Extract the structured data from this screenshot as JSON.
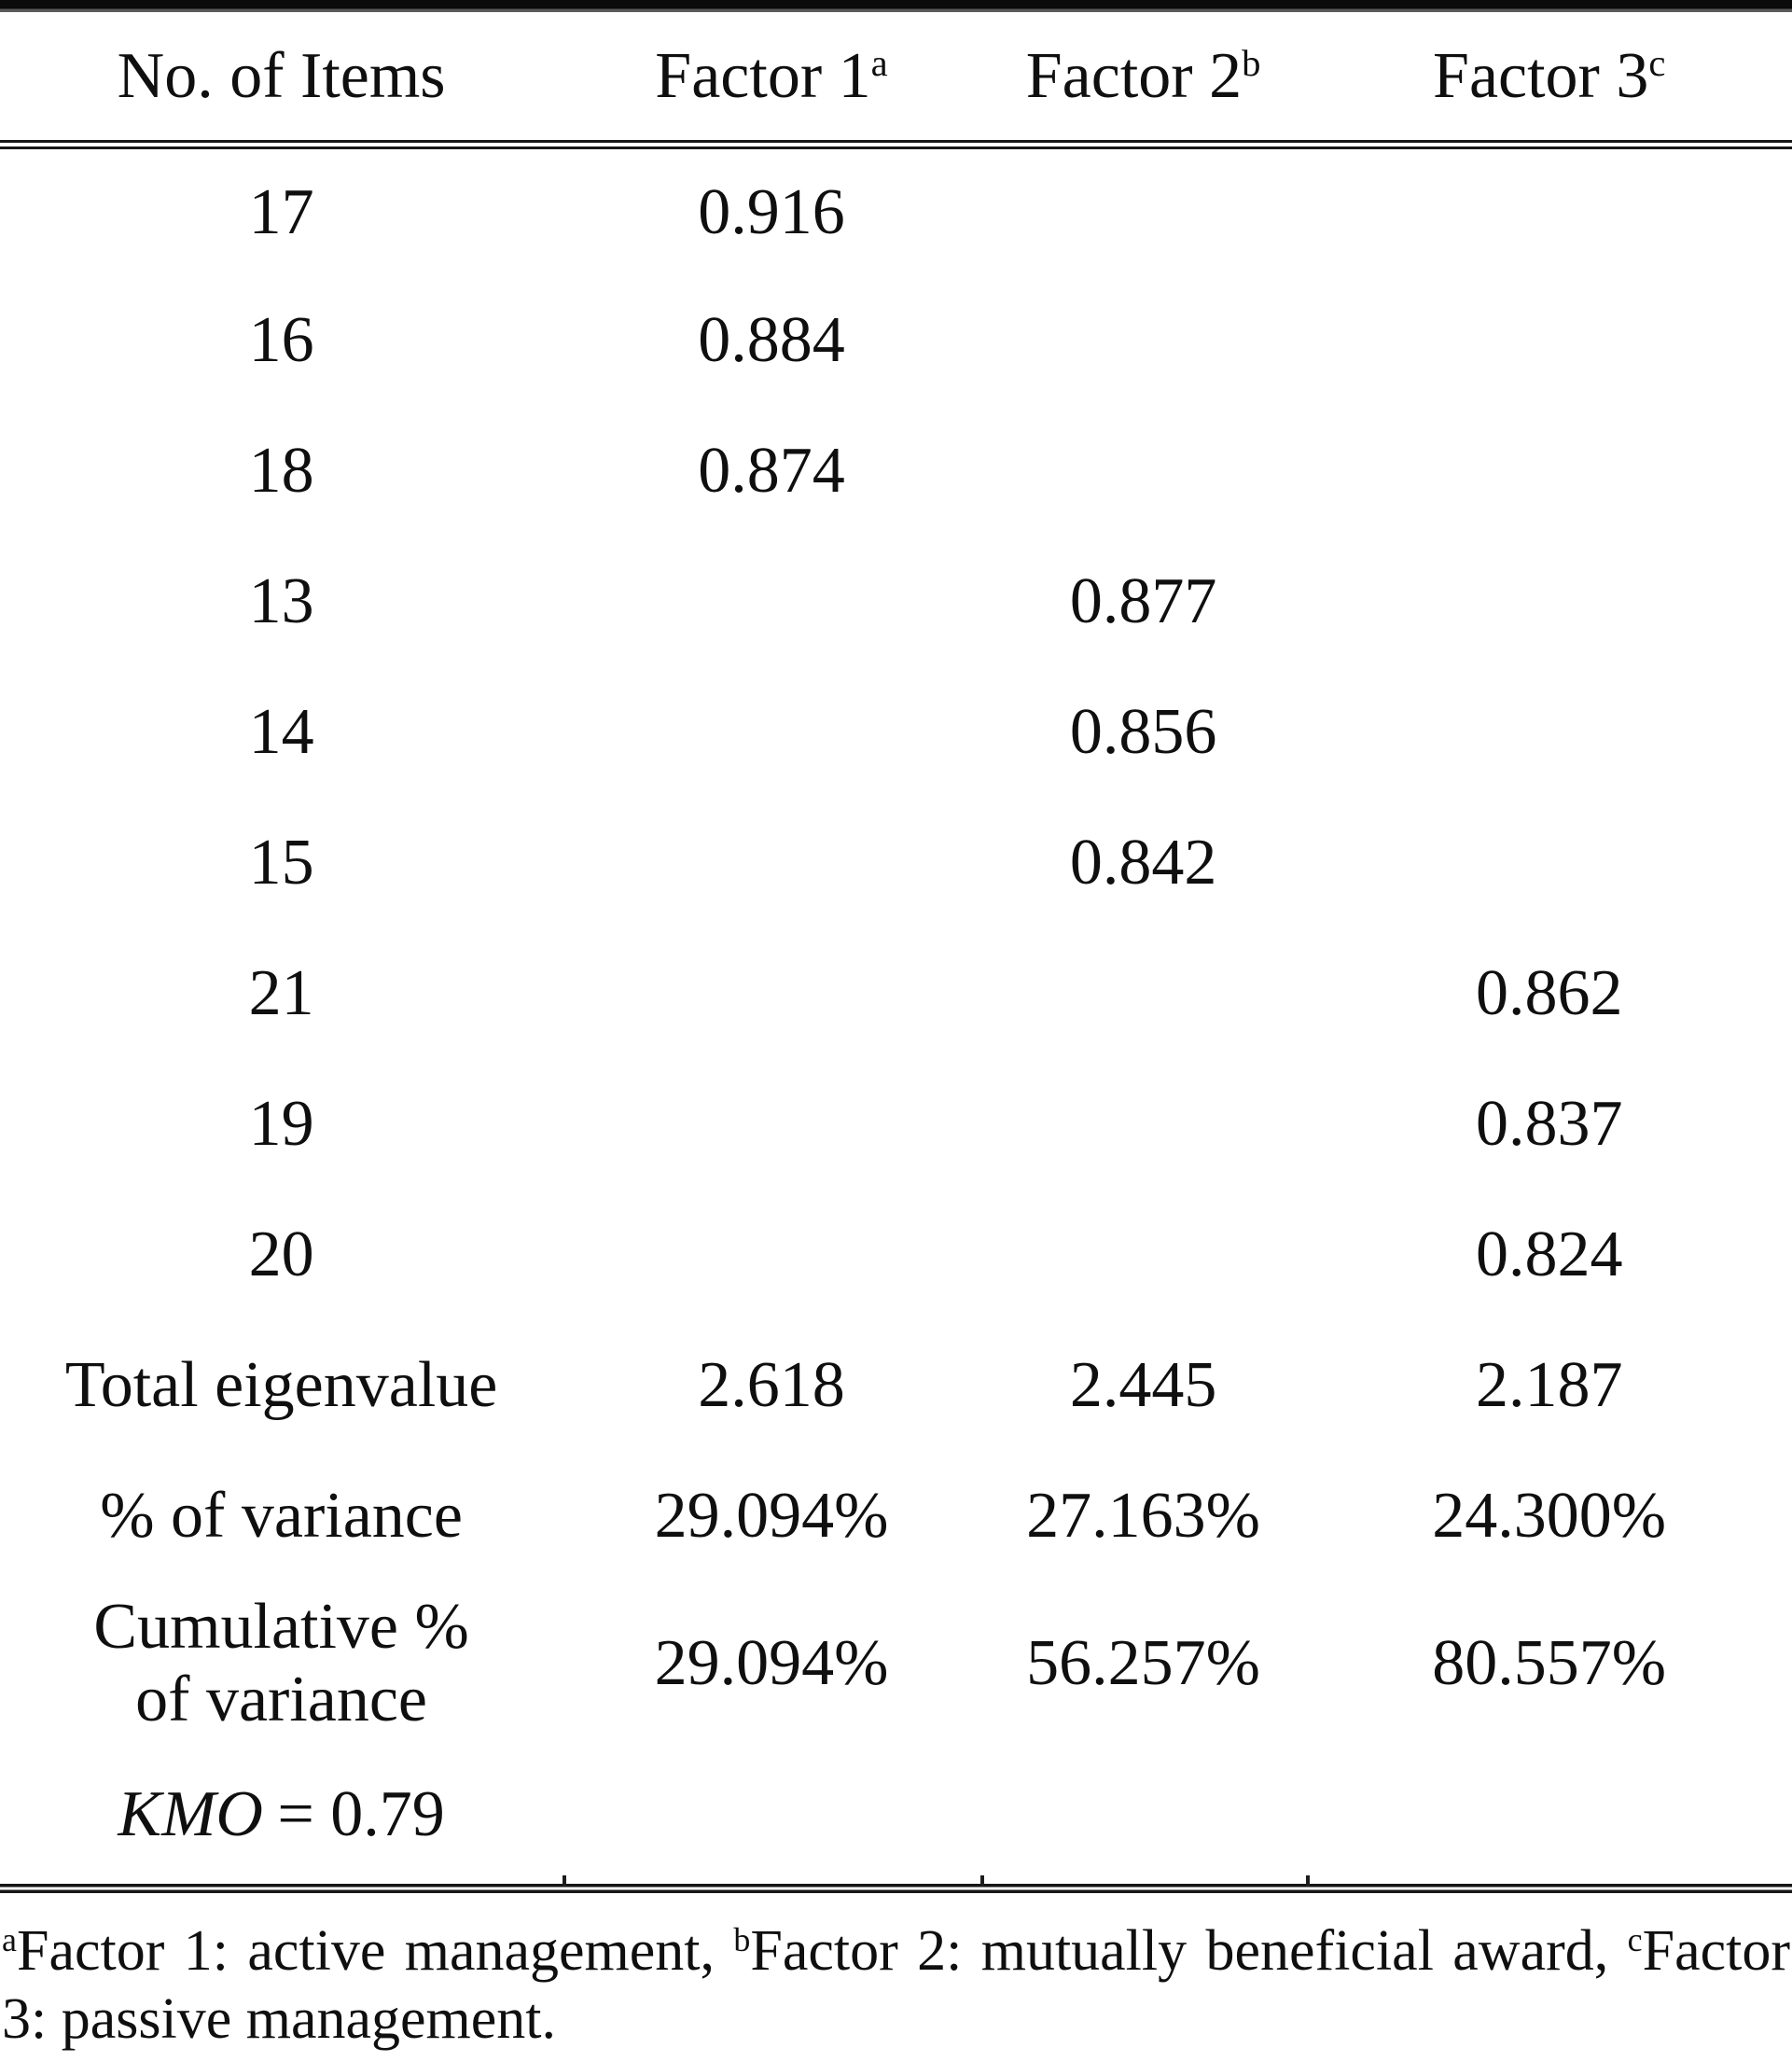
{
  "table": {
    "header": {
      "columns": [
        {
          "label": "No. of Items",
          "sup": ""
        },
        {
          "label": "Factor 1",
          "sup": "a"
        },
        {
          "label": "Factor 2",
          "sup": "b"
        },
        {
          "label": "Factor 3",
          "sup": "c"
        }
      ]
    },
    "item_rows": [
      {
        "cells": [
          "17",
          "0.916",
          "",
          ""
        ]
      },
      {
        "cells": [
          "16",
          "0.884",
          "",
          ""
        ]
      },
      {
        "cells": [
          "18",
          "0.874",
          "",
          ""
        ]
      },
      {
        "cells": [
          "13",
          "",
          "0.877",
          ""
        ]
      },
      {
        "cells": [
          "14",
          "",
          "0.856",
          ""
        ]
      },
      {
        "cells": [
          "15",
          "",
          "0.842",
          ""
        ]
      },
      {
        "cells": [
          "21",
          "",
          "",
          "0.862"
        ]
      },
      {
        "cells": [
          "19",
          "",
          "",
          "0.837"
        ]
      },
      {
        "cells": [
          "20",
          "",
          "",
          "0.824"
        ]
      }
    ],
    "summary_rows": [
      {
        "label_lines": [
          "Total eigenvalue"
        ],
        "cells": [
          "2.618",
          "2.445",
          "2.187"
        ],
        "tall": false
      },
      {
        "label_lines": [
          "% of variance"
        ],
        "cells": [
          "29.094%",
          "27.163%",
          "24.300%"
        ],
        "tall": false
      },
      {
        "label_lines": [
          "Cumulative %",
          "of variance"
        ],
        "cells": [
          "29.094%",
          "56.257%",
          "80.557%"
        ],
        "tall": true
      }
    ],
    "kmo": {
      "label": "KMO",
      "value": "= 0.79"
    }
  },
  "footnote": {
    "segments": [
      {
        "sup": "a",
        "text": "Factor 1: active management, "
      },
      {
        "sup": "b",
        "text": "Factor 2: mutually beneficial award, "
      },
      {
        "sup": "c",
        "text": "Factor 3: passive management."
      }
    ]
  }
}
